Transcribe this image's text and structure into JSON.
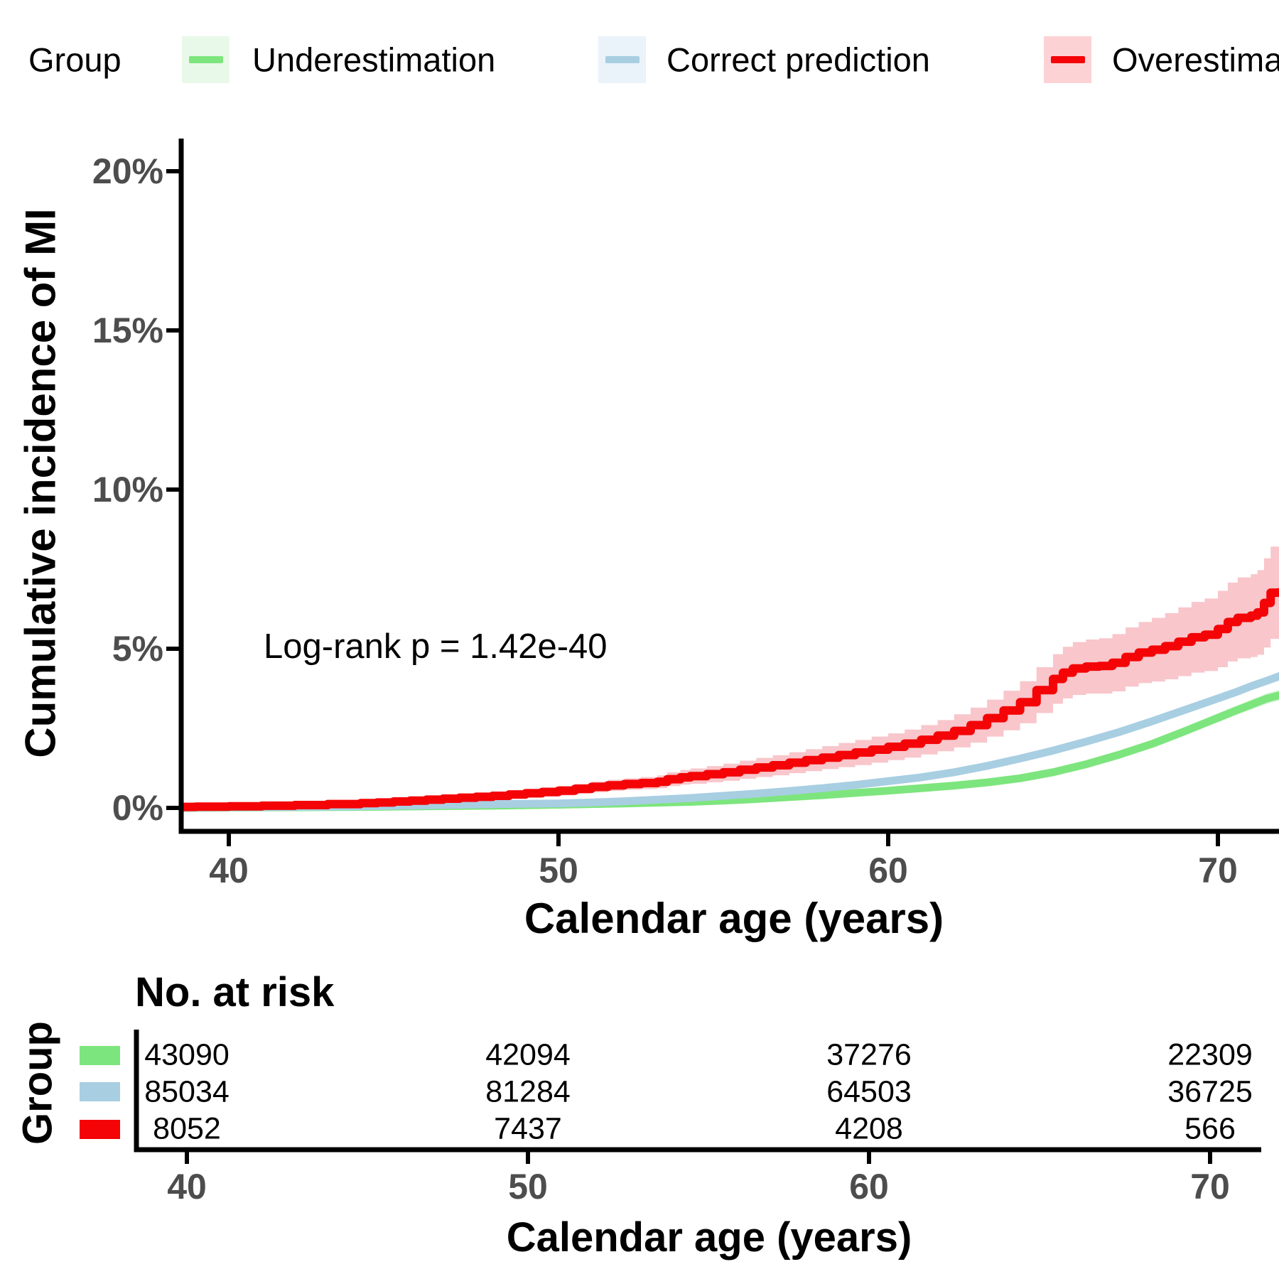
{
  "legend": {
    "title": "Group",
    "items": [
      {
        "label": "Underestimation",
        "line_color": "#7DE57D",
        "key_fill": "#E9F9E9"
      },
      {
        "label": "Correct prediction",
        "line_color": "#A8CEE2",
        "key_fill": "#EAF3F9"
      },
      {
        "label": "Overestimation",
        "line_color": "#F40407",
        "key_fill": "#FCD2D5"
      }
    ]
  },
  "chart_data": {
    "type": "line",
    "subtype": "kaplan-meier-cumulative-incidence",
    "title": "",
    "xlabel": "Calendar age (years)",
    "ylabel": "Cumulative incidence of MI",
    "annotation": "Log-rank p = 1.42e-40",
    "x_ticks": [
      40,
      50,
      60,
      70
    ],
    "x_tick_labels": [
      "40",
      "50",
      "60",
      "70"
    ],
    "y_ticks_pct": [
      0,
      5,
      10,
      15,
      20
    ],
    "y_tick_labels": [
      "0%",
      "5%",
      "10%",
      "15%",
      "20%"
    ],
    "xlim": [
      38.45,
      71.9
    ],
    "ylim_pct": [
      0,
      21
    ],
    "grid": false,
    "legend_position": "top",
    "series": [
      {
        "name": "Underestimation",
        "color": "#7DE57D",
        "ribbon_color": "#E2F8E2",
        "step": false,
        "points_age_pct_ci": [
          [
            38.45,
            0.0,
            0.01
          ],
          [
            40,
            0.01,
            0.01
          ],
          [
            42,
            0.02,
            0.01
          ],
          [
            44,
            0.03,
            0.02
          ],
          [
            46,
            0.05,
            0.02
          ],
          [
            48,
            0.07,
            0.03
          ],
          [
            50,
            0.1,
            0.03
          ],
          [
            52,
            0.14,
            0.04
          ],
          [
            54,
            0.19,
            0.04
          ],
          [
            55,
            0.23,
            0.05
          ],
          [
            56,
            0.28,
            0.05
          ],
          [
            57,
            0.34,
            0.06
          ],
          [
            58,
            0.4,
            0.06
          ],
          [
            59,
            0.47,
            0.07
          ],
          [
            60,
            0.54,
            0.07
          ],
          [
            61,
            0.62,
            0.08
          ],
          [
            62,
            0.7,
            0.08
          ],
          [
            63,
            0.8,
            0.09
          ],
          [
            64,
            0.93,
            0.09
          ],
          [
            65,
            1.12,
            0.1
          ],
          [
            66,
            1.37,
            0.1
          ],
          [
            67,
            1.67,
            0.11
          ],
          [
            68,
            2.01,
            0.12
          ],
          [
            69,
            2.41,
            0.13
          ],
          [
            70,
            2.83,
            0.14
          ],
          [
            70.5,
            3.04,
            0.15
          ],
          [
            71,
            3.24,
            0.16
          ],
          [
            71.5,
            3.44,
            0.17
          ],
          [
            71.9,
            3.55,
            0.18
          ]
        ]
      },
      {
        "name": "Correct prediction",
        "color": "#A8CEE2",
        "ribbon_color": "#E6F1F8",
        "step": false,
        "points_age_pct_ci": [
          [
            38.45,
            0.01,
            0.01
          ],
          [
            40,
            0.02,
            0.01
          ],
          [
            42,
            0.03,
            0.01
          ],
          [
            44,
            0.05,
            0.02
          ],
          [
            46,
            0.08,
            0.02
          ],
          [
            48,
            0.12,
            0.03
          ],
          [
            50,
            0.14,
            0.03
          ],
          [
            51,
            0.17,
            0.03
          ],
          [
            52,
            0.21,
            0.04
          ],
          [
            53,
            0.26,
            0.04
          ],
          [
            54,
            0.31,
            0.04
          ],
          [
            55,
            0.38,
            0.05
          ],
          [
            56,
            0.45,
            0.05
          ],
          [
            57,
            0.53,
            0.05
          ],
          [
            58,
            0.62,
            0.06
          ],
          [
            59,
            0.72,
            0.06
          ],
          [
            60,
            0.84,
            0.06
          ],
          [
            61,
            0.96,
            0.07
          ],
          [
            62,
            1.12,
            0.07
          ],
          [
            63,
            1.32,
            0.08
          ],
          [
            64,
            1.55,
            0.08
          ],
          [
            65,
            1.8,
            0.09
          ],
          [
            66,
            2.08,
            0.09
          ],
          [
            67,
            2.38,
            0.1
          ],
          [
            68,
            2.72,
            0.1
          ],
          [
            69,
            3.08,
            0.11
          ],
          [
            70,
            3.44,
            0.11
          ],
          [
            70.5,
            3.62,
            0.12
          ],
          [
            71,
            3.82,
            0.12
          ],
          [
            71.5,
            4.0,
            0.13
          ],
          [
            71.9,
            4.15,
            0.14
          ]
        ]
      },
      {
        "name": "Overestimation",
        "color": "#F40407",
        "ribbon_color": "#F8C6CB",
        "step": true,
        "points_age_pct_ci": [
          [
            38.45,
            0.03,
            0.02
          ],
          [
            39,
            0.04,
            0.02
          ],
          [
            40,
            0.05,
            0.03
          ],
          [
            41,
            0.07,
            0.04
          ],
          [
            42,
            0.09,
            0.05
          ],
          [
            43,
            0.12,
            0.06
          ],
          [
            44,
            0.15,
            0.07
          ],
          [
            44.5,
            0.17,
            0.075
          ],
          [
            45,
            0.2,
            0.08
          ],
          [
            45.5,
            0.23,
            0.09
          ],
          [
            46,
            0.26,
            0.1
          ],
          [
            46.5,
            0.29,
            0.105
          ],
          [
            47,
            0.32,
            0.11
          ],
          [
            47.5,
            0.35,
            0.115
          ],
          [
            48,
            0.38,
            0.12
          ],
          [
            48.5,
            0.42,
            0.13
          ],
          [
            49,
            0.46,
            0.14
          ],
          [
            49.5,
            0.5,
            0.145
          ],
          [
            50,
            0.54,
            0.15
          ],
          [
            50.5,
            0.6,
            0.16
          ],
          [
            51,
            0.66,
            0.17
          ],
          [
            51.5,
            0.71,
            0.175
          ],
          [
            52,
            0.75,
            0.18
          ],
          [
            52.5,
            0.78,
            0.19
          ],
          [
            53,
            0.82,
            0.2
          ],
          [
            53.3,
            0.9,
            0.215
          ],
          [
            53.7,
            0.96,
            0.23
          ],
          [
            54,
            1.0,
            0.24
          ],
          [
            54.5,
            1.06,
            0.255
          ],
          [
            55,
            1.12,
            0.27
          ],
          [
            55.5,
            1.2,
            0.285
          ],
          [
            56,
            1.27,
            0.3
          ],
          [
            56.5,
            1.34,
            0.315
          ],
          [
            57,
            1.42,
            0.33
          ],
          [
            57.5,
            1.5,
            0.345
          ],
          [
            58,
            1.58,
            0.36
          ],
          [
            58.5,
            1.66,
            0.38
          ],
          [
            59,
            1.74,
            0.395
          ],
          [
            59.5,
            1.83,
            0.41
          ],
          [
            60,
            1.92,
            0.42
          ],
          [
            60.5,
            2.02,
            0.44
          ],
          [
            61,
            2.14,
            0.46
          ],
          [
            61.5,
            2.27,
            0.49
          ],
          [
            62,
            2.42,
            0.52
          ],
          [
            62.5,
            2.6,
            0.55
          ],
          [
            63,
            2.82,
            0.58
          ],
          [
            63.5,
            3.06,
            0.62
          ],
          [
            64,
            3.32,
            0.66
          ],
          [
            64.5,
            3.7,
            0.72
          ],
          [
            65,
            4.05,
            0.78
          ],
          [
            65.3,
            4.25,
            0.81
          ],
          [
            65.6,
            4.38,
            0.83
          ],
          [
            66,
            4.44,
            0.85
          ],
          [
            66.4,
            4.46,
            0.87
          ],
          [
            66.8,
            4.56,
            0.9
          ],
          [
            67.2,
            4.74,
            0.93
          ],
          [
            67.6,
            4.88,
            0.96
          ],
          [
            68,
            4.97,
            1.0
          ],
          [
            68.4,
            5.08,
            1.04
          ],
          [
            68.8,
            5.22,
            1.08
          ],
          [
            69.2,
            5.36,
            1.11
          ],
          [
            69.6,
            5.44,
            1.14
          ],
          [
            70,
            5.62,
            1.2
          ],
          [
            70.3,
            5.84,
            1.24
          ],
          [
            70.6,
            5.97,
            1.27
          ],
          [
            71,
            6.04,
            1.3
          ],
          [
            71.2,
            6.14,
            1.33
          ],
          [
            71.4,
            6.44,
            1.4
          ],
          [
            71.6,
            6.76,
            1.45
          ],
          [
            71.9,
            6.9,
            1.5
          ]
        ]
      }
    ]
  },
  "risk_table": {
    "title": "No. at risk",
    "group_axis_label": "Group",
    "x_tick_labels": [
      "40",
      "50",
      "60",
      "70"
    ],
    "xlabel": "Calendar age (years)",
    "rows": [
      {
        "group": "Underestimation",
        "color": "#7DE57D",
        "counts": [
          "43090",
          "42094",
          "37276",
          "22309"
        ]
      },
      {
        "group": "Correct prediction",
        "color": "#A8CEE2",
        "counts": [
          "85034",
          "81284",
          "64503",
          "36725"
        ]
      },
      {
        "group": "Overestimation",
        "color": "#F40407",
        "counts": [
          "8052",
          "7437",
          "4208",
          "566"
        ]
      }
    ]
  }
}
